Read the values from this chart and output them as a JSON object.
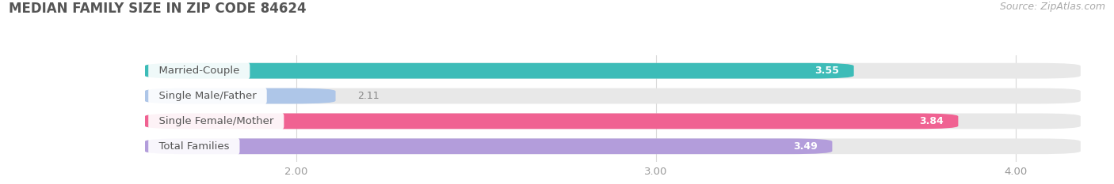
{
  "title": "MEDIAN FAMILY SIZE IN ZIP CODE 84624",
  "source": "Source: ZipAtlas.com",
  "categories": [
    "Married-Couple",
    "Single Male/Father",
    "Single Female/Mother",
    "Total Families"
  ],
  "values": [
    3.55,
    2.11,
    3.84,
    3.49
  ],
  "bar_colors": [
    "#3dbcb8",
    "#aec6e8",
    "#f06292",
    "#b39ddb"
  ],
  "bar_bg_color": "#e8e8e8",
  "xlim": [
    1.58,
    4.18
  ],
  "xticks": [
    2.0,
    3.0,
    4.0
  ],
  "xtick_labels": [
    "2.00",
    "3.00",
    "4.00"
  ],
  "background_color": "#ffffff",
  "title_fontsize": 12,
  "label_fontsize": 9.5,
  "value_fontsize": 9,
  "source_fontsize": 9,
  "bar_height": 0.62,
  "grid_color": "#d8d8d8",
  "tick_color": "#999999",
  "title_color": "#555555",
  "label_color": "#555555",
  "value_color_inside": "#ffffff",
  "value_color_outside": "#888888"
}
